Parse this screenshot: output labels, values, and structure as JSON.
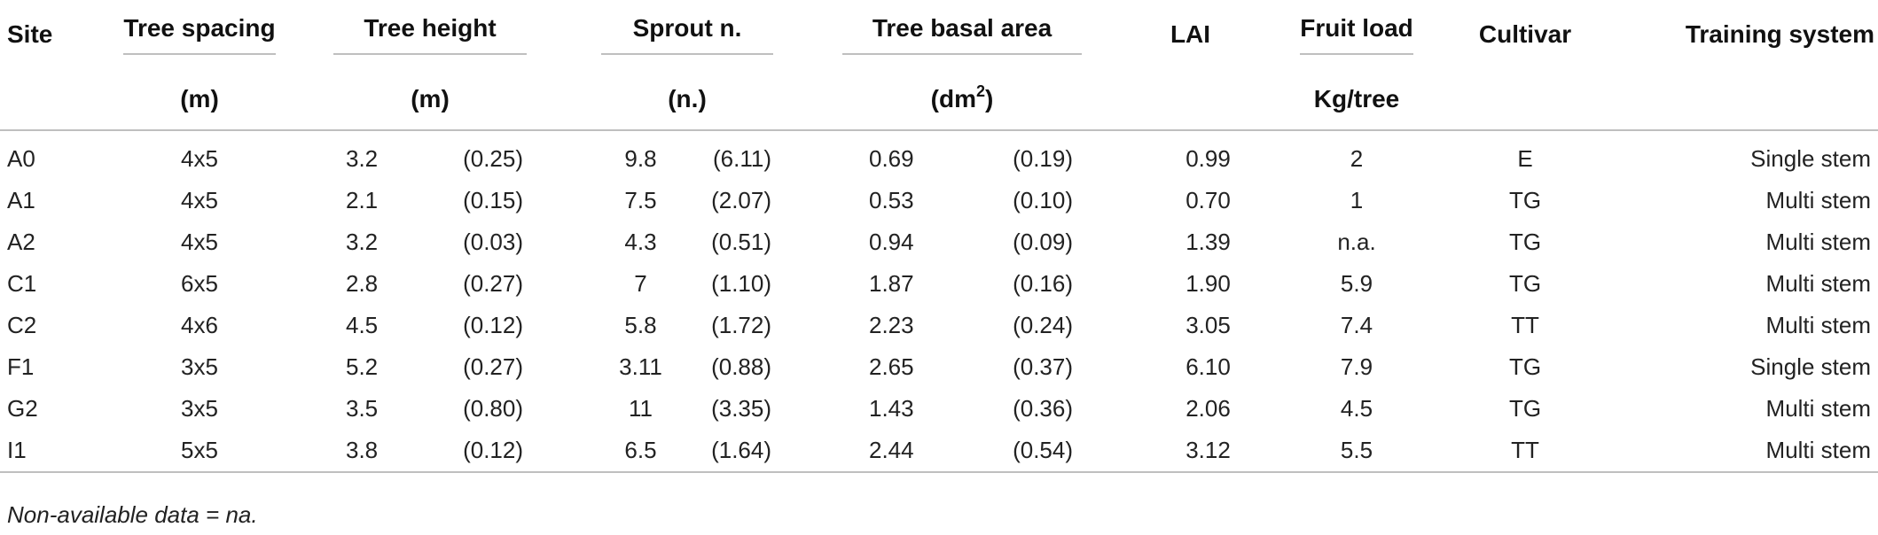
{
  "table": {
    "headers": {
      "site": "Site",
      "tree_spacing": "Tree spacing",
      "tree_height": "Tree height",
      "sprout_n": "Sprout n.",
      "tree_basal_area": "Tree basal area",
      "lai": "LAI",
      "fruit_load": "Fruit load",
      "cultivar": "Cultivar",
      "training_system": "Training system"
    },
    "units": {
      "tree_spacing": "(m)",
      "tree_height": "(m)",
      "sprout_n": "(n.)",
      "tree_basal_area_prefix": "(dm",
      "tree_basal_area_sup": "2",
      "tree_basal_area_suffix": ")",
      "fruit_load": "Kg/tree"
    },
    "rows": [
      {
        "site": "A0",
        "spacing": "4x5",
        "height": "3.2",
        "height_sd": "(0.25)",
        "sprout": "9.8",
        "sprout_sd": "(6.11)",
        "basal": "0.69",
        "basal_sd": "(0.19)",
        "lai": "0.99",
        "fruit": "2",
        "cultivar": "E",
        "training": "Single stem"
      },
      {
        "site": "A1",
        "spacing": "4x5",
        "height": "2.1",
        "height_sd": "(0.15)",
        "sprout": "7.5",
        "sprout_sd": "(2.07)",
        "basal": "0.53",
        "basal_sd": "(0.10)",
        "lai": "0.70",
        "fruit": "1",
        "cultivar": "TG",
        "training": "Multi stem"
      },
      {
        "site": "A2",
        "spacing": "4x5",
        "height": "3.2",
        "height_sd": "(0.03)",
        "sprout": "4.3",
        "sprout_sd": "(0.51)",
        "basal": "0.94",
        "basal_sd": "(0.09)",
        "lai": "1.39",
        "fruit": "n.a.",
        "cultivar": "TG",
        "training": "Multi stem"
      },
      {
        "site": "C1",
        "spacing": "6x5",
        "height": "2.8",
        "height_sd": "(0.27)",
        "sprout": "7",
        "sprout_sd": "(1.10)",
        "basal": "1.87",
        "basal_sd": "(0.16)",
        "lai": "1.90",
        "fruit": "5.9",
        "cultivar": "TG",
        "training": "Multi stem"
      },
      {
        "site": "C2",
        "spacing": "4x6",
        "height": "4.5",
        "height_sd": "(0.12)",
        "sprout": "5.8",
        "sprout_sd": "(1.72)",
        "basal": "2.23",
        "basal_sd": "(0.24)",
        "lai": "3.05",
        "fruit": "7.4",
        "cultivar": "TT",
        "training": "Multi stem"
      },
      {
        "site": "F1",
        "spacing": "3x5",
        "height": "5.2",
        "height_sd": "(0.27)",
        "sprout": "3.11",
        "sprout_sd": "(0.88)",
        "basal": "2.65",
        "basal_sd": "(0.37)",
        "lai": "6.10",
        "fruit": "7.9",
        "cultivar": "TG",
        "training": "Single stem"
      },
      {
        "site": "G2",
        "spacing": "3x5",
        "height": "3.5",
        "height_sd": "(0.80)",
        "sprout": "11",
        "sprout_sd": "(3.35)",
        "basal": "1.43",
        "basal_sd": "(0.36)",
        "lai": "2.06",
        "fruit": "4.5",
        "cultivar": "TG",
        "training": "Multi stem"
      },
      {
        "site": "I1",
        "spacing": "5x5",
        "height": "3.8",
        "height_sd": "(0.12)",
        "sprout": "6.5",
        "sprout_sd": "(1.64)",
        "basal": "2.44",
        "basal_sd": "(0.54)",
        "lai": "3.12",
        "fruit": "5.5",
        "cultivar": "TT",
        "training": "Multi stem"
      }
    ]
  },
  "footnote": "Non-available data = na."
}
